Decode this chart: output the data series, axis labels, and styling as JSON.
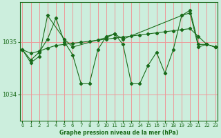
{
  "background_color": "#cceedd",
  "grid_color": "#ee9999",
  "line_color": "#1a6b1a",
  "marker_color": "#1a6b1a",
  "xlabel": "Graphe pression niveau de la mer (hPa)",
  "xlabel_color": "#1a6b1a",
  "ylabel_ticks": [
    1034,
    1035
  ],
  "ylim": [
    1033.5,
    1035.75
  ],
  "xlim": [
    -0.3,
    23.3
  ],
  "xticks": [
    0,
    1,
    2,
    3,
    4,
    5,
    6,
    7,
    8,
    9,
    10,
    11,
    12,
    13,
    14,
    15,
    16,
    17,
    18,
    19,
    20,
    21,
    22,
    23
  ],
  "series": [
    {
      "x": [
        0,
        1,
        2,
        3,
        4,
        5,
        6,
        7,
        8,
        9,
        10,
        11,
        12,
        13,
        14,
        15,
        16,
        17,
        18,
        19,
        20,
        21,
        22,
        23
      ],
      "y": [
        1034.85,
        1034.78,
        1034.82,
        1034.88,
        1034.93,
        1034.95,
        1034.97,
        1034.99,
        1035.01,
        1035.03,
        1035.05,
        1035.07,
        1035.09,
        1035.11,
        1035.13,
        1035.15,
        1035.17,
        1035.19,
        1035.21,
        1035.23,
        1035.25,
        1035.1,
        1034.95,
        1034.9
      ]
    },
    {
      "x": [
        0,
        1,
        2,
        3,
        4,
        5,
        6,
        7,
        8,
        9,
        10,
        11,
        12,
        13,
        14,
        15,
        16,
        17,
        18,
        19,
        20,
        21,
        22,
        23
      ],
      "y": [
        1034.85,
        1034.65,
        1034.8,
        1035.05,
        1035.45,
        1035.0,
        1034.75,
        1034.2,
        1034.2,
        1034.85,
        1035.1,
        1035.15,
        1034.95,
        1034.2,
        1034.2,
        1034.55,
        1034.8,
        1034.4,
        1034.85,
        1035.5,
        1035.55,
        1034.9,
        1034.95,
        1034.9
      ]
    },
    {
      "x": [
        0,
        1,
        2,
        3,
        5,
        6,
        10,
        11,
        12,
        19,
        20,
        21,
        22,
        23
      ],
      "y": [
        1034.85,
        1034.6,
        1034.72,
        1035.5,
        1035.05,
        1034.9,
        1035.08,
        1035.15,
        1035.05,
        1035.5,
        1035.6,
        1034.95,
        1034.95,
        1034.9
      ]
    }
  ]
}
